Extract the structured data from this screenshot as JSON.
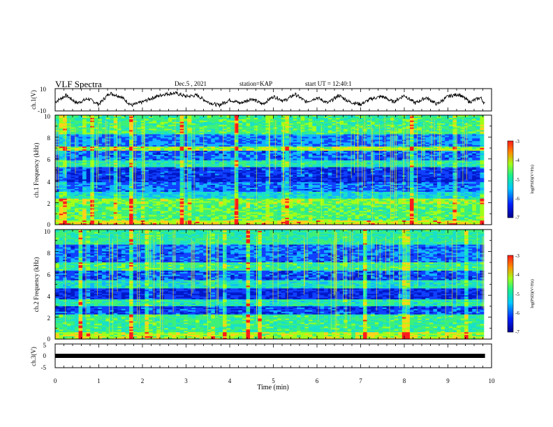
{
  "header": {
    "title": "VLF Spectra",
    "date": "Dec.5 , 2021",
    "station": "station=KAP",
    "start": "start UT = 12:40:1"
  },
  "chart_data": [
    {
      "type": "line",
      "ylabel": "ch.1(V)",
      "ylim": [
        -10,
        10
      ],
      "yticks": [
        "10",
        "-10"
      ],
      "xlim": [
        0,
        10
      ],
      "description_series": "ch1 waveform",
      "x": [
        0,
        0.25,
        0.5,
        0.75,
        1.0,
        1.25,
        1.5,
        1.75,
        2.0,
        2.25,
        2.5,
        2.75,
        3.0,
        3.25,
        3.5,
        3.75,
        4.0,
        4.25,
        4.5,
        4.75,
        5.0,
        5.25,
        5.5,
        5.75,
        6.0,
        6.25,
        6.5,
        6.75,
        7.0,
        7.25,
        7.5,
        7.75,
        8.0,
        8.25,
        8.5,
        8.75,
        9.0,
        9.25,
        9.5,
        9.75,
        9.85
      ],
      "y": [
        -2,
        4,
        -3,
        1,
        -4,
        6,
        3,
        -5,
        -2,
        2,
        5,
        6,
        3,
        4,
        -2,
        -5,
        0,
        -3,
        1,
        -4,
        3,
        -1,
        5,
        -2,
        2,
        -3,
        4,
        -2,
        -4,
        1,
        3,
        -2,
        4,
        -3,
        2,
        -4,
        3,
        5,
        -2,
        2,
        -4
      ]
    },
    {
      "type": "heatmap",
      "ylabel": "ch.1 Frequency (kHz)",
      "ylim": [
        0,
        10
      ],
      "yticks": [
        "0",
        "2",
        "4",
        "6",
        "8",
        "10"
      ],
      "colorbar_label": "log(PSD)(V²/Hz)",
      "colorbar_ticks": [
        "-3",
        "-4",
        "-5",
        "-6",
        "-7"
      ],
      "colorbar_range": [
        -7,
        -3
      ]
    },
    {
      "type": "heatmap",
      "ylabel": "ch.2 Frequency (kHz)",
      "ylim": [
        0,
        10
      ],
      "yticks": [
        "0",
        "2",
        "4",
        "6",
        "8",
        "10"
      ],
      "colorbar_label": "log(PSD)(V²/Hz)",
      "colorbar_ticks": [
        "-3",
        "-4",
        "-5",
        "-6",
        "-7"
      ],
      "colorbar_range": [
        -7,
        -3
      ]
    },
    {
      "type": "line",
      "ylabel": "ch.3(V)",
      "ylim": [
        -5,
        5
      ],
      "yticks": [
        "5",
        "0",
        "-5"
      ],
      "xlim": [
        0,
        10
      ],
      "x": [
        0,
        9.85
      ],
      "y": [
        -1,
        -1
      ]
    }
  ],
  "xaxis": {
    "label": "Time (min)",
    "ticks": [
      "0",
      "1",
      "2",
      "3",
      "4",
      "5",
      "6",
      "7",
      "8",
      "9",
      "10"
    ],
    "range": [
      0,
      10
    ]
  },
  "colors": {
    "spectrum_low": "#0018c8",
    "spectrum_mid": "#19e0c8",
    "spectrum_high": "#c8ff19",
    "spectrum_peak": "#ff1a1a",
    "line": "#000000"
  }
}
